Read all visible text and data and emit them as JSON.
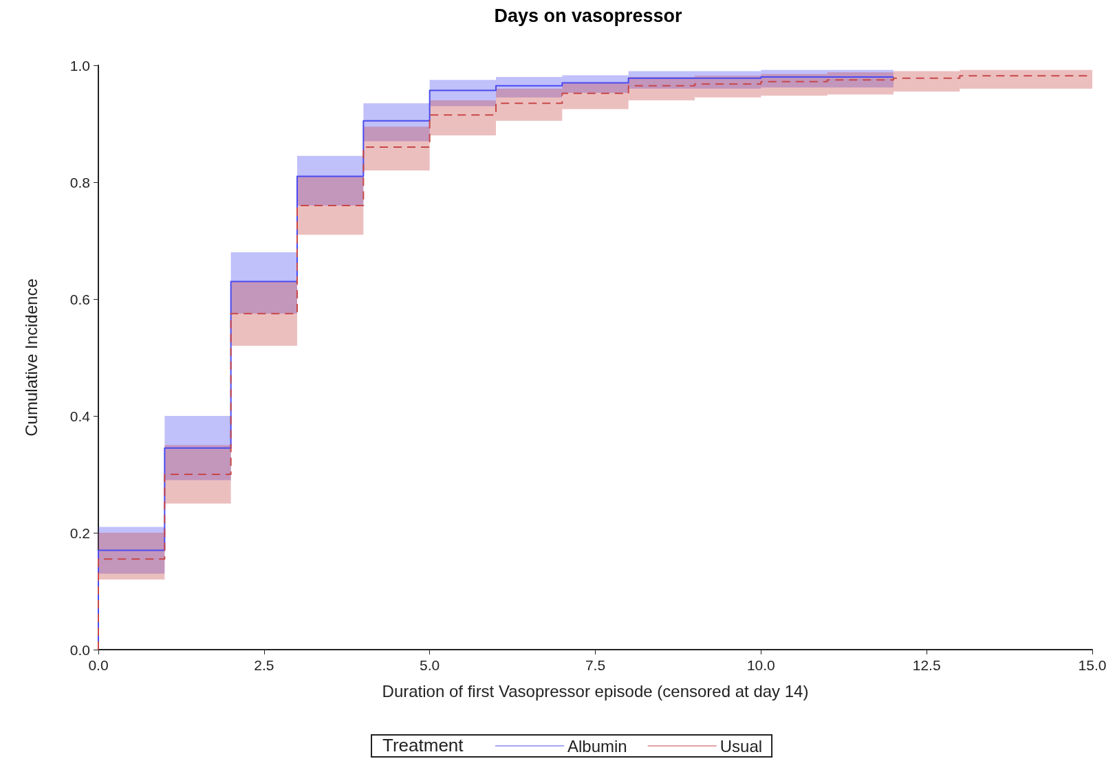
{
  "chart_data": {
    "type": "step",
    "title": "Days on vasopressor",
    "xlabel": "Duration of first Vasopressor episode (censored at day 14)",
    "ylabel": "Cumulative Incidence",
    "legend_title": "Treatment",
    "legend": "bottom",
    "grid": false,
    "marker": "none",
    "xlim": [
      0,
      15
    ],
    "ylim": [
      0,
      1
    ],
    "xticks": [
      {
        "value": 0,
        "label": "0.0"
      },
      {
        "value": 2.5,
        "label": "2.5"
      },
      {
        "value": 5,
        "label": "5.0"
      },
      {
        "value": 7.5,
        "label": "7.5"
      },
      {
        "value": 10,
        "label": "10.0"
      },
      {
        "value": 12.5,
        "label": "12.5"
      },
      {
        "value": 15,
        "label": "15.0"
      }
    ],
    "yticks": [
      {
        "value": 0,
        "label": "0.0"
      },
      {
        "value": 0.2,
        "label": "0.2"
      },
      {
        "value": 0.4,
        "label": "0.4"
      },
      {
        "value": 0.6,
        "label": "0.6"
      },
      {
        "value": 0.8,
        "label": "0.8"
      },
      {
        "value": 1,
        "label": "1.0"
      }
    ],
    "series": [
      {
        "name": "Albumin",
        "color": "#4a4af0",
        "line_style": "solid",
        "x": [
          0,
          0,
          1,
          2,
          3,
          4,
          5,
          6,
          7,
          8,
          9,
          10,
          11,
          12
        ],
        "values": [
          0,
          0.17,
          0.345,
          0.63,
          0.81,
          0.905,
          0.957,
          0.965,
          0.97,
          0.978,
          0.978,
          0.98,
          0.98,
          0.98
        ],
        "lower": [
          null,
          0.13,
          0.29,
          0.575,
          0.76,
          0.87,
          0.93,
          0.945,
          0.953,
          0.96,
          0.96,
          0.962,
          0.962,
          0.962
        ],
        "upper": [
          null,
          0.21,
          0.4,
          0.68,
          0.845,
          0.935,
          0.975,
          0.98,
          0.983,
          0.99,
          0.99,
          0.992,
          0.992,
          0.992
        ]
      },
      {
        "name": "Usual",
        "color": "#c84848",
        "line_style": "dashed",
        "x": [
          0,
          0,
          1,
          2,
          3,
          4,
          5,
          6,
          7,
          8,
          9,
          10,
          11,
          12,
          13,
          15
        ],
        "values": [
          0,
          0.155,
          0.3,
          0.575,
          0.76,
          0.86,
          0.915,
          0.935,
          0.952,
          0.965,
          0.968,
          0.972,
          0.975,
          0.978,
          0.982,
          0.982
        ],
        "lower": [
          null,
          0.12,
          0.25,
          0.52,
          0.71,
          0.82,
          0.88,
          0.905,
          0.925,
          0.94,
          0.945,
          0.948,
          0.95,
          0.955,
          0.96,
          0.96
        ],
        "upper": [
          null,
          0.2,
          0.35,
          0.63,
          0.81,
          0.895,
          0.94,
          0.96,
          0.97,
          0.98,
          0.982,
          0.985,
          0.988,
          0.99,
          0.992,
          0.992
        ]
      }
    ]
  }
}
